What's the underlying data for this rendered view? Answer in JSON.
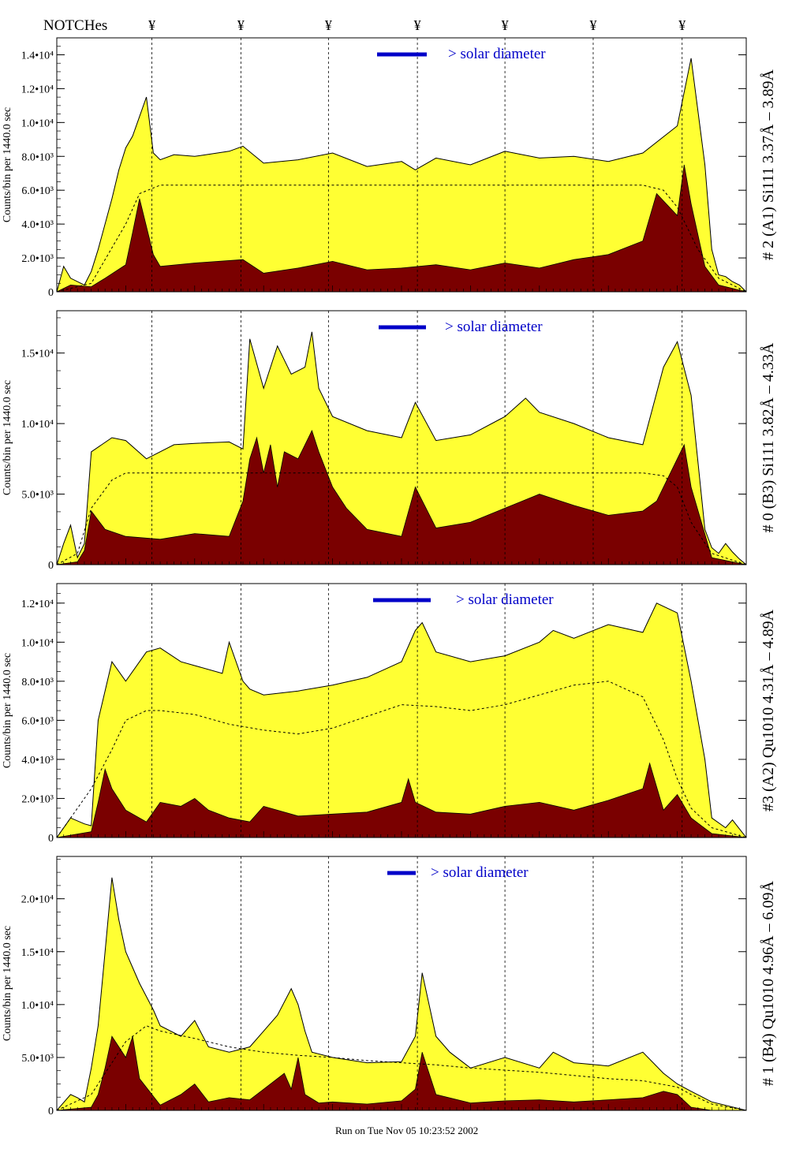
{
  "header": {
    "notches_label": "NOTCHes",
    "notch_symbol": "¥",
    "notch_positions": [
      0.138,
      0.267,
      0.394,
      0.523,
      0.65,
      0.778,
      0.907
    ]
  },
  "colors": {
    "outer_fill": "#ffff33",
    "inner_fill": "#7a0000",
    "legend": "#0000c8",
    "frame": "#000000"
  },
  "footer": {
    "text": "Run on Tue Nov 05 10:23:52 2002"
  },
  "panels": [
    {
      "title": "# 2 (A1) Si111  3.37Å – 3.89Å",
      "ylabel": "Counts/bin per  1440.0 sec",
      "ticks": [
        {
          "v": 0,
          "label": "0"
        },
        {
          "v": 2000,
          "label": "2.0•10³"
        },
        {
          "v": 4000,
          "label": "4.0•10³"
        },
        {
          "v": 6000,
          "label": "6.0•10³"
        },
        {
          "v": 8000,
          "label": "8.0•10³"
        },
        {
          "v": 10000,
          "label": "1.0•10⁴"
        },
        {
          "v": 12000,
          "label": "1.2•10⁴"
        },
        {
          "v": 14000,
          "label": "1.4•10⁴"
        }
      ],
      "legend": "> solar diameter"
    },
    {
      "title": "# 0 (B3) Si111  3.82Å – 4.33Å",
      "ylabel": "Counts/bin per  1440.0 sec",
      "ticks": [
        {
          "v": 0,
          "label": "0"
        },
        {
          "v": 5000,
          "label": "5.0•10³"
        },
        {
          "v": 10000,
          "label": "1.0•10⁴"
        },
        {
          "v": 15000,
          "label": "1.5•10⁴"
        }
      ],
      "legend": "> solar diameter"
    },
    {
      "title": "#3 (A2) Qu1010  4.31Å – 4.89Å",
      "ylabel": "Counts/bin per  1440.0 sec",
      "ticks": [
        {
          "v": 0,
          "label": "0"
        },
        {
          "v": 2000,
          "label": "2.0•10³"
        },
        {
          "v": 4000,
          "label": "4.0•10³"
        },
        {
          "v": 6000,
          "label": "6.0•10³"
        },
        {
          "v": 8000,
          "label": "8.0•10³"
        },
        {
          "v": 10000,
          "label": "1.0•10⁴"
        },
        {
          "v": 12000,
          "label": "1.2•10⁴"
        }
      ],
      "legend": "> solar diameter"
    },
    {
      "title": "# 1 (B4) Qu1010 4.96Å – 6.09Å",
      "ylabel": "Counts/bin per  1440.0 sec",
      "ticks": [
        {
          "v": 0,
          "label": "0"
        },
        {
          "v": 5000,
          "label": "5.0•10³"
        },
        {
          "v": 10000,
          "label": "1.0•10⁴"
        },
        {
          "v": 15000,
          "label": "1.5•10⁴"
        },
        {
          "v": 20000,
          "label": "2.0•10⁴"
        }
      ],
      "legend": "> solar diameter"
    }
  ],
  "chart_data": [
    {
      "type": "area",
      "title": "# 2 (A1) Si111  3.37Å – 3.89Å",
      "ylabel": "Counts/bin per  1440.0 sec",
      "ylim": [
        0,
        15000
      ],
      "grid": false,
      "series": [
        {
          "name": "",
          "x": [
            0.0,
            0.01,
            0.02,
            0.04,
            0.05,
            0.06,
            0.08,
            0.09,
            0.1,
            0.11,
            0.13,
            0.14,
            0.15,
            0.17,
            0.2,
            0.25,
            0.27,
            0.3,
            0.35,
            0.4,
            0.45,
            0.5,
            0.52,
            0.55,
            0.6,
            0.65,
            0.7,
            0.75,
            0.8,
            0.85,
            0.9,
            0.92,
            0.94,
            0.95,
            0.96,
            0.97,
            0.98,
            0.99,
            1.0
          ],
          "values": [
            0,
            1500,
            800,
            400,
            1200,
            2500,
            5500,
            7200,
            8500,
            9200,
            11500,
            8200,
            7800,
            8100,
            8000,
            8300,
            8600,
            7600,
            7800,
            8200,
            7400,
            7700,
            7200,
            7900,
            7500,
            8300,
            7900,
            8000,
            7700,
            8200,
            9800,
            13800,
            7500,
            2500,
            1000,
            900,
            600,
            400,
            0
          ]
        },
        {
          "name": "",
          "x": [
            0.0,
            0.02,
            0.05,
            0.07,
            0.1,
            0.11,
            0.12,
            0.14,
            0.15,
            0.2,
            0.27,
            0.3,
            0.35,
            0.4,
            0.45,
            0.5,
            0.55,
            0.6,
            0.65,
            0.7,
            0.75,
            0.8,
            0.85,
            0.87,
            0.9,
            0.91,
            0.92,
            0.94,
            0.96,
            1.0
          ],
          "values": [
            0,
            400,
            300,
            800,
            1600,
            3500,
            5500,
            2200,
            1500,
            1700,
            1900,
            1100,
            1400,
            1800,
            1300,
            1400,
            1600,
            1300,
            1700,
            1400,
            1900,
            2200,
            3000,
            5800,
            4500,
            7500,
            5200,
            1500,
            400,
            0
          ]
        },
        {
          "name": "",
          "x": [
            0.0,
            0.05,
            0.1,
            0.12,
            0.15,
            0.2,
            0.3,
            0.4,
            0.5,
            0.6,
            0.7,
            0.8,
            0.85,
            0.88,
            0.9,
            0.93,
            0.96,
            1.0
          ],
          "values": [
            0,
            500,
            4000,
            5800,
            6300,
            6300,
            6300,
            6300,
            6300,
            6300,
            6300,
            6300,
            6300,
            6000,
            5000,
            2500,
            800,
            0
          ]
        }
      ]
    },
    {
      "type": "area",
      "title": "# 0 (B3) Si111  3.82Å – 4.33Å",
      "ylabel": "Counts/bin per  1440.0 sec",
      "ylim": [
        0,
        18000
      ],
      "grid": false,
      "series": [
        {
          "name": "",
          "x": [
            0.0,
            0.01,
            0.02,
            0.03,
            0.04,
            0.05,
            0.08,
            0.1,
            0.13,
            0.17,
            0.2,
            0.25,
            0.27,
            0.28,
            0.3,
            0.32,
            0.34,
            0.36,
            0.37,
            0.38,
            0.4,
            0.45,
            0.5,
            0.52,
            0.55,
            0.6,
            0.65,
            0.68,
            0.7,
            0.75,
            0.8,
            0.85,
            0.88,
            0.9,
            0.92,
            0.94,
            0.95,
            0.96,
            0.97,
            0.98,
            0.99,
            1.0
          ],
          "values": [
            0,
            1500,
            2800,
            500,
            1500,
            8000,
            9000,
            8800,
            7500,
            8500,
            8600,
            8700,
            8200,
            16000,
            12500,
            15500,
            13500,
            14000,
            16500,
            12500,
            10500,
            9500,
            9000,
            11500,
            8800,
            9200,
            10500,
            11800,
            10800,
            10000,
            9000,
            8500,
            14000,
            15800,
            12000,
            2500,
            1200,
            800,
            1500,
            900,
            400,
            0
          ]
        },
        {
          "name": "",
          "x": [
            0.0,
            0.03,
            0.04,
            0.05,
            0.07,
            0.1,
            0.15,
            0.2,
            0.25,
            0.27,
            0.28,
            0.29,
            0.3,
            0.31,
            0.32,
            0.33,
            0.35,
            0.37,
            0.38,
            0.4,
            0.42,
            0.45,
            0.5,
            0.52,
            0.55,
            0.6,
            0.65,
            0.7,
            0.75,
            0.8,
            0.85,
            0.87,
            0.9,
            0.91,
            0.92,
            0.95,
            1.0
          ],
          "values": [
            0,
            200,
            1000,
            3800,
            2500,
            2000,
            1800,
            2200,
            2000,
            4500,
            7500,
            9000,
            6500,
            8500,
            5500,
            8000,
            7500,
            9500,
            8000,
            5500,
            4000,
            2500,
            2000,
            5500,
            2600,
            3000,
            4000,
            5000,
            4200,
            3500,
            3800,
            4500,
            7500,
            8500,
            5500,
            500,
            0
          ]
        },
        {
          "name": "",
          "x": [
            0.0,
            0.03,
            0.05,
            0.08,
            0.1,
            0.15,
            0.2,
            0.3,
            0.4,
            0.5,
            0.6,
            0.7,
            0.8,
            0.85,
            0.88,
            0.9,
            0.92,
            0.95,
            1.0
          ],
          "values": [
            0,
            800,
            4000,
            6000,
            6500,
            6500,
            6500,
            6500,
            6500,
            6500,
            6500,
            6500,
            6500,
            6500,
            6300,
            5500,
            3000,
            800,
            0
          ]
        }
      ]
    },
    {
      "type": "area",
      "title": "#3 (A2) Qu1010  4.31Å – 4.89Å",
      "ylabel": "Counts/bin per  1440.0 sec",
      "ylim": [
        0,
        13000
      ],
      "grid": false,
      "series": [
        {
          "name": "",
          "x": [
            0.0,
            0.02,
            0.04,
            0.05,
            0.06,
            0.08,
            0.1,
            0.13,
            0.15,
            0.18,
            0.2,
            0.24,
            0.25,
            0.27,
            0.28,
            0.3,
            0.35,
            0.4,
            0.45,
            0.5,
            0.52,
            0.53,
            0.55,
            0.6,
            0.65,
            0.7,
            0.72,
            0.75,
            0.8,
            0.85,
            0.87,
            0.9,
            0.92,
            0.94,
            0.95,
            0.97,
            0.98,
            1.0
          ],
          "values": [
            0,
            1000,
            700,
            600,
            6000,
            9000,
            8000,
            9500,
            9700,
            9000,
            8800,
            8400,
            10000,
            8000,
            7600,
            7300,
            7500,
            7800,
            8200,
            9000,
            10600,
            11000,
            9500,
            9000,
            9300,
            10000,
            10600,
            10200,
            10900,
            10500,
            12000,
            11500,
            8000,
            4000,
            1000,
            500,
            900,
            0
          ]
        },
        {
          "name": "",
          "x": [
            0.0,
            0.05,
            0.06,
            0.07,
            0.08,
            0.1,
            0.13,
            0.15,
            0.18,
            0.2,
            0.22,
            0.25,
            0.28,
            0.3,
            0.35,
            0.4,
            0.45,
            0.5,
            0.51,
            0.52,
            0.55,
            0.6,
            0.65,
            0.7,
            0.75,
            0.8,
            0.85,
            0.86,
            0.88,
            0.9,
            0.92,
            0.95,
            1.0
          ],
          "values": [
            0,
            300,
            1800,
            3500,
            2500,
            1400,
            800,
            1800,
            1600,
            2000,
            1400,
            1000,
            800,
            1600,
            1100,
            1200,
            1300,
            1800,
            3000,
            1800,
            1300,
            1200,
            1600,
            1800,
            1400,
            1900,
            2500,
            3800,
            1400,
            2200,
            1000,
            200,
            0
          ]
        },
        {
          "name": "",
          "x": [
            0.0,
            0.05,
            0.08,
            0.1,
            0.13,
            0.15,
            0.2,
            0.25,
            0.3,
            0.35,
            0.4,
            0.45,
            0.5,
            0.55,
            0.6,
            0.65,
            0.7,
            0.75,
            0.8,
            0.85,
            0.88,
            0.9,
            0.92,
            0.95,
            1.0
          ],
          "values": [
            0,
            2500,
            4500,
            6000,
            6500,
            6500,
            6300,
            5800,
            5500,
            5300,
            5600,
            6200,
            6800,
            6700,
            6500,
            6800,
            7300,
            7800,
            8000,
            7200,
            5000,
            3000,
            1500,
            500,
            0
          ]
        }
      ]
    },
    {
      "type": "area",
      "title": "# 1 (B4) Qu1010 4.96Å – 6.09Å",
      "ylabel": "Counts/bin per  1440.0 sec",
      "ylim": [
        0,
        24000
      ],
      "grid": false,
      "series": [
        {
          "name": "",
          "x": [
            0.0,
            0.02,
            0.03,
            0.04,
            0.05,
            0.06,
            0.07,
            0.08,
            0.09,
            0.1,
            0.12,
            0.14,
            0.15,
            0.18,
            0.2,
            0.22,
            0.25,
            0.28,
            0.3,
            0.32,
            0.34,
            0.35,
            0.36,
            0.37,
            0.4,
            0.45,
            0.5,
            0.52,
            0.53,
            0.55,
            0.57,
            0.6,
            0.65,
            0.7,
            0.72,
            0.75,
            0.8,
            0.85,
            0.88,
            0.9,
            0.92,
            0.95,
            1.0
          ],
          "values": [
            0,
            1500,
            1200,
            800,
            4000,
            8000,
            15000,
            22000,
            18000,
            15000,
            12000,
            9500,
            8000,
            7000,
            8500,
            6000,
            5500,
            6000,
            7500,
            9000,
            11500,
            10000,
            7500,
            5500,
            5000,
            4500,
            4600,
            7000,
            13000,
            7000,
            5500,
            4000,
            5000,
            4000,
            5500,
            4500,
            4200,
            5500,
            3500,
            2500,
            1800,
            800,
            0
          ]
        },
        {
          "name": "",
          "x": [
            0.0,
            0.05,
            0.06,
            0.07,
            0.08,
            0.09,
            0.1,
            0.11,
            0.12,
            0.15,
            0.18,
            0.2,
            0.22,
            0.25,
            0.28,
            0.3,
            0.33,
            0.34,
            0.35,
            0.36,
            0.38,
            0.4,
            0.45,
            0.5,
            0.52,
            0.53,
            0.55,
            0.6,
            0.65,
            0.7,
            0.75,
            0.8,
            0.85,
            0.88,
            0.9,
            0.92,
            0.95,
            1.0
          ],
          "values": [
            0,
            300,
            1500,
            4000,
            7000,
            6000,
            5000,
            7000,
            3000,
            500,
            1500,
            2500,
            800,
            1200,
            1000,
            2000,
            3500,
            2000,
            5000,
            1500,
            700,
            800,
            600,
            900,
            2000,
            5500,
            1500,
            700,
            900,
            1000,
            800,
            1000,
            1200,
            1800,
            1500,
            300,
            0,
            0
          ]
        },
        {
          "name": "",
          "x": [
            0.0,
            0.05,
            0.07,
            0.1,
            0.13,
            0.15,
            0.2,
            0.25,
            0.3,
            0.35,
            0.4,
            0.45,
            0.5,
            0.55,
            0.6,
            0.65,
            0.7,
            0.75,
            0.8,
            0.85,
            0.9,
            0.92,
            0.95,
            1.0
          ],
          "values": [
            0,
            1500,
            3500,
            6500,
            8000,
            7500,
            6800,
            6000,
            5500,
            5200,
            5000,
            4700,
            4500,
            4300,
            4000,
            3800,
            3600,
            3300,
            3000,
            2800,
            2200,
            1500,
            600,
            0
          ]
        }
      ]
    }
  ]
}
